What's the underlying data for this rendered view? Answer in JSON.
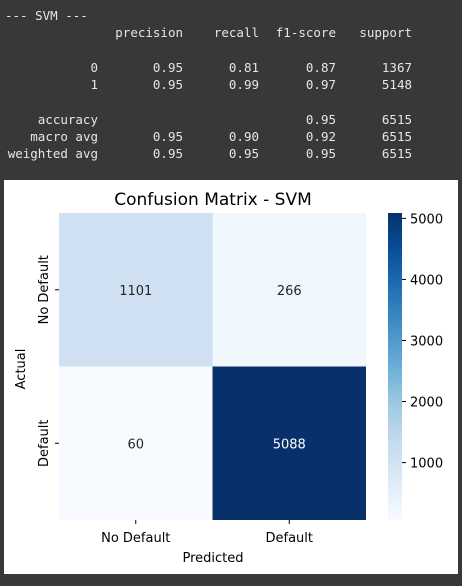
{
  "report": {
    "header": "--- SVM ---",
    "columns": [
      "precision",
      "recall",
      "f1-score",
      "support"
    ],
    "rows": [
      {
        "label": "0",
        "precision": "0.95",
        "recall": "0.81",
        "f1": "0.87",
        "support": "1367"
      },
      {
        "label": "1",
        "precision": "0.95",
        "recall": "0.99",
        "f1": "0.97",
        "support": "5148"
      },
      {
        "label": "accuracy",
        "precision": "",
        "recall": "",
        "f1": "0.95",
        "support": "6515"
      },
      {
        "label": "macro avg",
        "precision": "0.95",
        "recall": "0.90",
        "f1": "0.92",
        "support": "6515"
      },
      {
        "label": "weighted avg",
        "precision": "0.95",
        "recall": "0.95",
        "f1": "0.95",
        "support": "6515"
      }
    ]
  },
  "chart_data": {
    "type": "heatmap",
    "title": "Confusion Matrix - SVM",
    "xlabel": "Predicted",
    "ylabel": "Actual",
    "x_categories": [
      "No Default",
      "Default"
    ],
    "y_categories": [
      "No Default",
      "Default"
    ],
    "values": [
      [
        1101,
        266
      ],
      [
        60,
        5088
      ]
    ],
    "colormap": "Blues",
    "colorbar": {
      "min": 60,
      "max": 5088,
      "ticks": [
        1000,
        2000,
        3000,
        4000,
        5000
      ]
    },
    "colors": {
      "low": "#f7fbff",
      "high": "#08306b"
    }
  }
}
